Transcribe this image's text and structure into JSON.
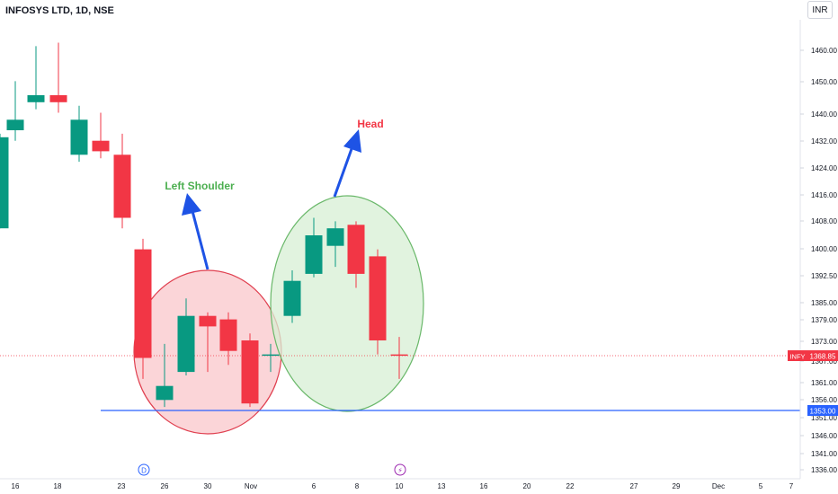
{
  "header": {
    "title": "INFOSYS LTD, 1D, NSE",
    "currency": "INR"
  },
  "price_tags": {
    "last_symbol": "INFY",
    "last_price": "1368.85",
    "support_price": "1353.00"
  },
  "event_markers": {
    "dividend": "D",
    "earnings": "⚡"
  },
  "colors": {
    "up": "#089981",
    "down": "#f23645",
    "support_line": "#2962ff",
    "arrow": "#1e53e5",
    "left_shoulder_label": "#4caf50",
    "head_label": "#f23645",
    "left_ellipse_fill": "#f9c7cb",
    "left_ellipse_stroke": "#e04050",
    "head_ellipse_fill": "#d7efd4",
    "head_ellipse_stroke": "#6ab86a"
  },
  "chart_data": {
    "type": "candlestick",
    "title": "INFOSYS LTD, 1D, NSE",
    "x_tick_labels": [
      "16",
      "18",
      "23",
      "26",
      "30",
      "Nov",
      "6",
      "8",
      "10",
      "13",
      "16",
      "20",
      "22",
      "27",
      "29",
      "Dec",
      "5",
      "7"
    ],
    "y_tick_labels": [
      "1460.00",
      "1450.00",
      "1440.00",
      "1432.00",
      "1424.00",
      "1416.00",
      "1408.00",
      "1400.00",
      "1392.50",
      "1385.00",
      "1379.00",
      "1373.00",
      "1367.00",
      "1361.00",
      "1356.00",
      "1351.00",
      "1346.00",
      "1341.00",
      "1336.00"
    ],
    "y_axis": "right",
    "candles": [
      {
        "date": "Oct 13",
        "open": 1405,
        "high": 1432,
        "low": 1405,
        "close": 1431
      },
      {
        "date": "Oct 16",
        "open": 1433,
        "high": 1447,
        "low": 1430,
        "close": 1436
      },
      {
        "date": "Oct 17",
        "open": 1441,
        "high": 1457,
        "low": 1439,
        "close": 1443
      },
      {
        "date": "Oct 18",
        "open": 1443,
        "high": 1458,
        "low": 1438,
        "close": 1441
      },
      {
        "date": "Oct 19",
        "open": 1426,
        "high": 1440,
        "low": 1424,
        "close": 1436
      },
      {
        "date": "Oct 20",
        "open": 1430,
        "high": 1438,
        "low": 1425,
        "close": 1427
      },
      {
        "date": "Oct 23",
        "open": 1426,
        "high": 1432,
        "low": 1405,
        "close": 1408
      },
      {
        "date": "Oct 25",
        "open": 1399,
        "high": 1402,
        "low": 1362,
        "close": 1368
      },
      {
        "date": "Oct 26",
        "open": 1356,
        "high": 1372,
        "low": 1354,
        "close": 1360
      },
      {
        "date": "Oct 27",
        "open": 1364,
        "high": 1385,
        "low": 1363,
        "close": 1380
      },
      {
        "date": "Oct 30",
        "open": 1380,
        "high": 1381,
        "low": 1364,
        "close": 1377
      },
      {
        "date": "Oct 31",
        "open": 1379,
        "high": 1381,
        "low": 1366,
        "close": 1370
      },
      {
        "date": "Nov 1",
        "open": 1373,
        "high": 1375,
        "low": 1354,
        "close": 1355
      },
      {
        "date": "Nov 2",
        "open": 1369,
        "high": 1372,
        "low": 1364,
        "close": 1369
      },
      {
        "date": "Nov 3",
        "open": 1380,
        "high": 1393,
        "low": 1378,
        "close": 1390
      },
      {
        "date": "Nov 6",
        "open": 1392,
        "high": 1408,
        "low": 1391,
        "close": 1403
      },
      {
        "date": "Nov 7",
        "open": 1400,
        "high": 1407,
        "low": 1394,
        "close": 1405
      },
      {
        "date": "Nov 8",
        "open": 1406,
        "high": 1407,
        "low": 1388,
        "close": 1392
      },
      {
        "date": "Nov 9",
        "open": 1397,
        "high": 1399,
        "low": 1369,
        "close": 1373
      },
      {
        "date": "Nov 10",
        "open": 1369,
        "high": 1374,
        "low": 1362,
        "close": 1368.85
      }
    ],
    "support_level": 1353.0,
    "last_price": 1368.85,
    "annotations": [
      "Left Shoulder",
      "Head"
    ]
  }
}
